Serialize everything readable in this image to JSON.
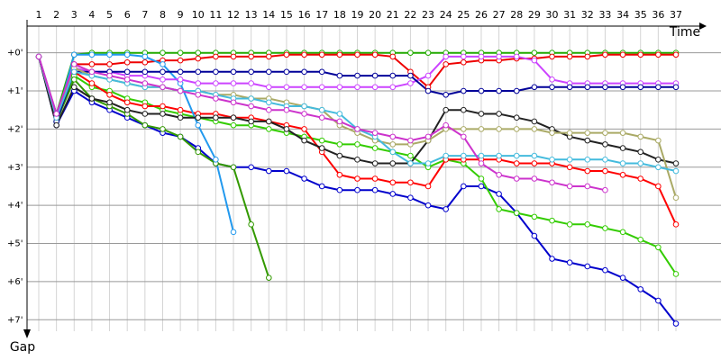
{
  "chart_data": {
    "type": "line",
    "x_label": "Time",
    "y_label": "Gap",
    "categories": [
      "1",
      "2",
      "3",
      "4",
      "5",
      "6",
      "7",
      "8",
      "9",
      "10",
      "11",
      "12",
      "13",
      "14",
      "15",
      "16",
      "17",
      "18",
      "19",
      "20",
      "21",
      "22",
      "23",
      "24",
      "25",
      "26",
      "27",
      "28",
      "29",
      "30",
      "31",
      "32",
      "33",
      "34",
      "35",
      "36",
      "37"
    ],
    "ylim": [
      -0.7,
      7.3
    ],
    "yticks": [
      {
        "value": 0,
        "label": "+0'"
      },
      {
        "value": 1,
        "label": "+1'"
      },
      {
        "value": 2,
        "label": "+2'"
      },
      {
        "value": 3,
        "label": "+3'"
      },
      {
        "value": 4,
        "label": "+4'"
      },
      {
        "value": 5,
        "label": "+5'"
      },
      {
        "value": 6,
        "label": "+6'"
      },
      {
        "value": 7,
        "label": "+7'"
      }
    ],
    "y_reversed": true,
    "grid": true,
    "series": [
      {
        "color": "#22aa00",
        "values": [
          0.1,
          1.6,
          0.05,
          0,
          0,
          0,
          0,
          0,
          0,
          0,
          0,
          0,
          0,
          0,
          0,
          0,
          0,
          0,
          0,
          0,
          0,
          0,
          0,
          0,
          0,
          0,
          0,
          0,
          0,
          0,
          0,
          0,
          0,
          0,
          0,
          0,
          0
        ]
      },
      {
        "color": "#ee0000",
        "values": [
          0.1,
          1.7,
          0.3,
          0.3,
          0.3,
          0.25,
          0.25,
          0.2,
          0.2,
          0.15,
          0.1,
          0.1,
          0.1,
          0.1,
          0.05,
          0.05,
          0.05,
          0.05,
          0.05,
          0.05,
          0.1,
          0.5,
          0.9,
          0.3,
          0.25,
          0.2,
          0.2,
          0.15,
          0.15,
          0.1,
          0.1,
          0.1,
          0.05,
          0.05,
          0.05,
          0.05,
          0.05
        ]
      },
      {
        "color": "#0000cc",
        "values": [
          0.1,
          1.9,
          1.0,
          1.3,
          1.5,
          1.7,
          1.9,
          2.1,
          2.2,
          2.5,
          2.9,
          3.0,
          3.0,
          3.1,
          3.1,
          3.3,
          3.5,
          3.6,
          3.6,
          3.6,
          3.7,
          3.8,
          4.0,
          4.1,
          3.5,
          3.5,
          3.7,
          4.2,
          4.8,
          5.4,
          5.5,
          5.6,
          5.7,
          5.9,
          6.2,
          6.5,
          7.1
        ]
      },
      {
        "color": "#33cc00",
        "values": [
          0.1,
          1.8,
          0.6,
          0.9,
          1.0,
          1.2,
          1.3,
          1.5,
          1.6,
          1.7,
          1.8,
          1.9,
          1.9,
          2.0,
          2.1,
          2.2,
          2.3,
          2.4,
          2.4,
          2.5,
          2.6,
          2.7,
          3.0,
          2.8,
          2.9,
          3.3,
          4.1,
          4.2,
          4.3,
          4.4,
          4.5,
          4.5,
          4.6,
          4.7,
          4.9,
          5.1,
          5.8
        ]
      },
      {
        "color": "#ff0000",
        "values": [
          0.1,
          1.7,
          0.5,
          0.8,
          1.1,
          1.3,
          1.4,
          1.4,
          1.5,
          1.6,
          1.6,
          1.7,
          1.7,
          1.8,
          1.9,
          2.0,
          2.6,
          3.2,
          3.3,
          3.3,
          3.4,
          3.4,
          3.5,
          2.8,
          2.8,
          2.8,
          2.8,
          2.9,
          2.9,
          2.9,
          3.0,
          3.1,
          3.1,
          3.2,
          3.3,
          3.5,
          4.5
        ]
      },
      {
        "color": "#339900",
        "values": [
          0.1,
          1.8,
          0.7,
          1.2,
          1.4,
          1.6,
          1.9,
          2.0,
          2.2,
          2.6,
          2.9,
          3.0,
          4.5,
          5.9,
          null,
          null,
          null,
          null,
          null,
          null,
          null,
          null,
          null,
          null,
          null,
          null,
          null,
          null,
          null,
          null,
          null,
          null,
          null,
          null,
          null,
          null,
          null
        ]
      },
      {
        "color": "#2299ee",
        "values": [
          0.1,
          1.8,
          0.05,
          0.05,
          0.05,
          0.05,
          0.1,
          0.3,
          0.8,
          1.9,
          2.8,
          4.7,
          null,
          null,
          null,
          null,
          null,
          null,
          null,
          null,
          null,
          null,
          null,
          null,
          null,
          null,
          null,
          null,
          null,
          null,
          null,
          null,
          null,
          null,
          null,
          null,
          null
        ]
      },
      {
        "color": "#cc44ff",
        "values": [
          0.1,
          1.6,
          0.4,
          0.5,
          0.5,
          0.6,
          0.6,
          0.7,
          0.7,
          0.8,
          0.8,
          0.8,
          0.8,
          0.9,
          0.9,
          0.9,
          0.9,
          0.9,
          0.9,
          0.9,
          0.9,
          0.8,
          0.6,
          0.1,
          0.1,
          0.1,
          0.1,
          0.1,
          0.2,
          0.7,
          0.8,
          0.8,
          0.8,
          0.8,
          0.8,
          0.8,
          0.8
        ]
      },
      {
        "color": "#000099",
        "values": [
          0.1,
          1.8,
          0.5,
          0.5,
          0.5,
          0.5,
          0.5,
          0.5,
          0.5,
          0.5,
          0.5,
          0.5,
          0.5,
          0.5,
          0.5,
          0.5,
          0.5,
          0.6,
          0.6,
          0.6,
          0.6,
          0.6,
          1.0,
          1.1,
          1.0,
          1.0,
          1.0,
          1.0,
          0.9,
          0.9,
          0.9,
          0.9,
          0.9,
          0.9,
          0.9,
          0.9,
          0.9
        ]
      },
      {
        "color": "#222222",
        "values": [
          0.1,
          1.9,
          0.9,
          1.2,
          1.3,
          1.5,
          1.6,
          1.6,
          1.7,
          1.7,
          1.7,
          1.7,
          1.8,
          1.8,
          2.0,
          2.3,
          2.5,
          2.7,
          2.8,
          2.9,
          2.9,
          2.9,
          2.3,
          1.5,
          1.5,
          1.6,
          1.6,
          1.7,
          1.8,
          2.0,
          2.2,
          2.3,
          2.4,
          2.5,
          2.6,
          2.8,
          2.9
        ]
      },
      {
        "color": "#aaaa66",
        "values": [
          0.1,
          1.7,
          0.4,
          0.6,
          0.7,
          0.8,
          0.9,
          0.9,
          1.0,
          1.0,
          1.1,
          1.1,
          1.2,
          1.2,
          1.3,
          1.4,
          1.5,
          1.9,
          2.1,
          2.3,
          2.4,
          2.4,
          2.3,
          2.0,
          2.0,
          2.0,
          2.0,
          2.0,
          2.0,
          2.1,
          2.1,
          2.1,
          2.1,
          2.1,
          2.2,
          2.3,
          3.8
        ]
      },
      {
        "color": "#44bbdd",
        "values": [
          0.1,
          1.7,
          0.5,
          0.6,
          0.7,
          0.8,
          0.9,
          0.9,
          1.0,
          1.0,
          1.1,
          1.2,
          1.2,
          1.3,
          1.4,
          1.4,
          1.5,
          1.6,
          2.0,
          2.2,
          2.6,
          2.9,
          2.9,
          2.7,
          2.7,
          2.7,
          2.7,
          2.7,
          2.7,
          2.8,
          2.8,
          2.8,
          2.8,
          2.9,
          2.9,
          3.0,
          3.1
        ]
      },
      {
        "color": "#cc33cc",
        "values": [
          0.1,
          1.6,
          0.3,
          0.5,
          0.6,
          0.7,
          0.8,
          0.9,
          1.0,
          1.1,
          1.2,
          1.3,
          1.4,
          1.5,
          1.5,
          1.6,
          1.7,
          1.8,
          2.0,
          2.1,
          2.2,
          2.3,
          2.2,
          1.9,
          2.2,
          2.9,
          3.2,
          3.3,
          3.3,
          3.4,
          3.5,
          3.5,
          3.6,
          null,
          null,
          null,
          null
        ]
      }
    ]
  }
}
